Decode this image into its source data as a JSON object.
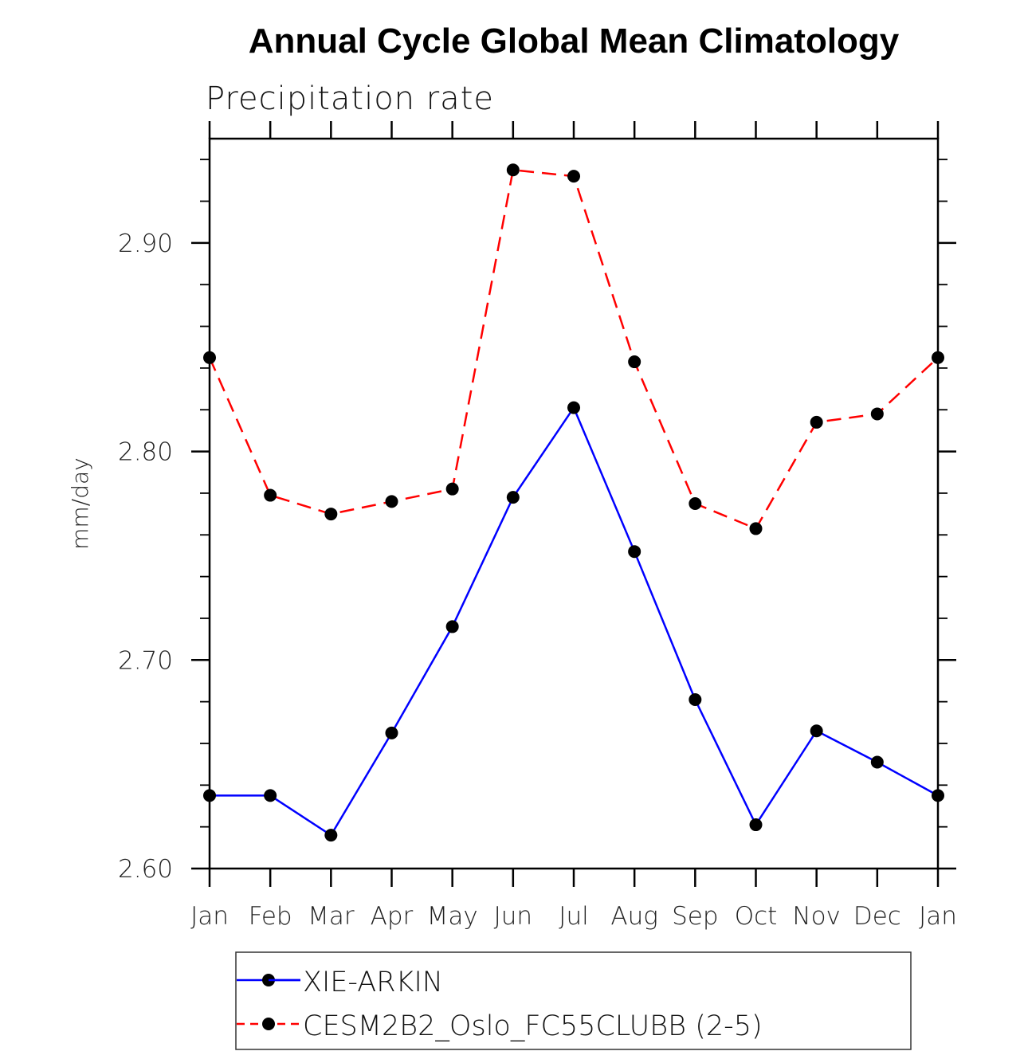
{
  "chart_data": {
    "type": "line",
    "title": "Annual Cycle Global Mean Climatology",
    "subtitle": "Precipitation rate",
    "xlabel": "",
    "ylabel": "mm/day",
    "categories": [
      "Jan",
      "Feb",
      "Mar",
      "Apr",
      "May",
      "Jun",
      "Jul",
      "Aug",
      "Sep",
      "Oct",
      "Nov",
      "Dec",
      "Jan"
    ],
    "ylim": [
      2.6,
      2.95
    ],
    "yticks_major": [
      2.6,
      2.7,
      2.8,
      2.9
    ],
    "ytick_labels": [
      "2.60",
      "2.70",
      "2.80",
      "2.90"
    ],
    "ytick_minor_step": 0.02,
    "grid": false,
    "legend_position": "bottom-center",
    "series": [
      {
        "name": "XIE-ARKIN",
        "color": "#0000ff",
        "line_style": "solid",
        "marker": "filled-circle",
        "marker_color": "#000000",
        "values": [
          2.635,
          2.635,
          2.616,
          2.665,
          2.716,
          2.778,
          2.821,
          2.752,
          2.681,
          2.621,
          2.666,
          2.651,
          2.635
        ]
      },
      {
        "name": "CESM2B2_Oslo_FC55CLUBB (2-5)",
        "color": "#ff0000",
        "line_style": "dashed",
        "marker": "filled-circle",
        "marker_color": "#000000",
        "values": [
          2.845,
          2.779,
          2.77,
          2.776,
          2.782,
          2.935,
          2.932,
          2.843,
          2.775,
          2.763,
          2.814,
          2.818,
          2.845
        ]
      }
    ]
  }
}
